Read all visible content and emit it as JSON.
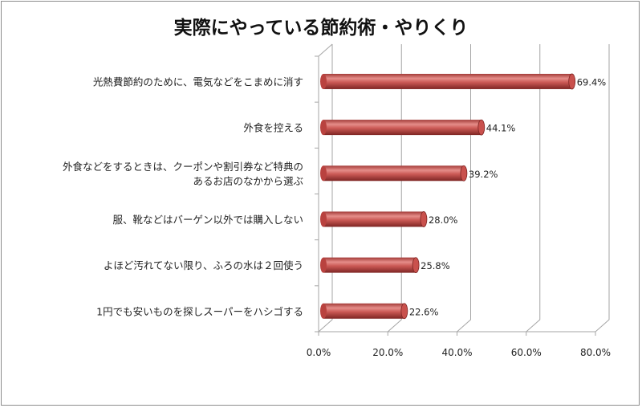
{
  "chart_data": {
    "type": "bar",
    "orientation": "horizontal",
    "style": "3d-cylinder",
    "title": "実際にやっている節約術・やりくり",
    "categories": [
      [
        "光熱費節約のために、電気などをこまめに消す"
      ],
      [
        "外食を控える"
      ],
      [
        "外食などをするときは、クーポンや割引券など特典の",
        "あるお店のなかから選ぶ"
      ],
      [
        "服、靴などはバーゲン以外では購入しない"
      ],
      [
        "よほど汚れてない限り、ふろの水は２回使う"
      ],
      [
        "1円でも安いものを探しスーパーをハシゴする"
      ]
    ],
    "values": [
      69.4,
      44.1,
      39.2,
      28.0,
      25.8,
      22.6
    ],
    "data_labels": [
      "69.4%",
      "44.1%",
      "39.2%",
      "28.0%",
      "25.8%",
      "22.6%"
    ],
    "xlim": [
      0,
      80
    ],
    "x_ticks": [
      "0.0%",
      "20.0%",
      "40.0%",
      "60.0%",
      "80.0%"
    ],
    "grid": true,
    "legend": "none",
    "colors": {
      "bar": "#c0504d",
      "bar_dark": "#8b2c2a",
      "bar_light": "#e38a87",
      "grid": "#a6a6a6"
    }
  }
}
